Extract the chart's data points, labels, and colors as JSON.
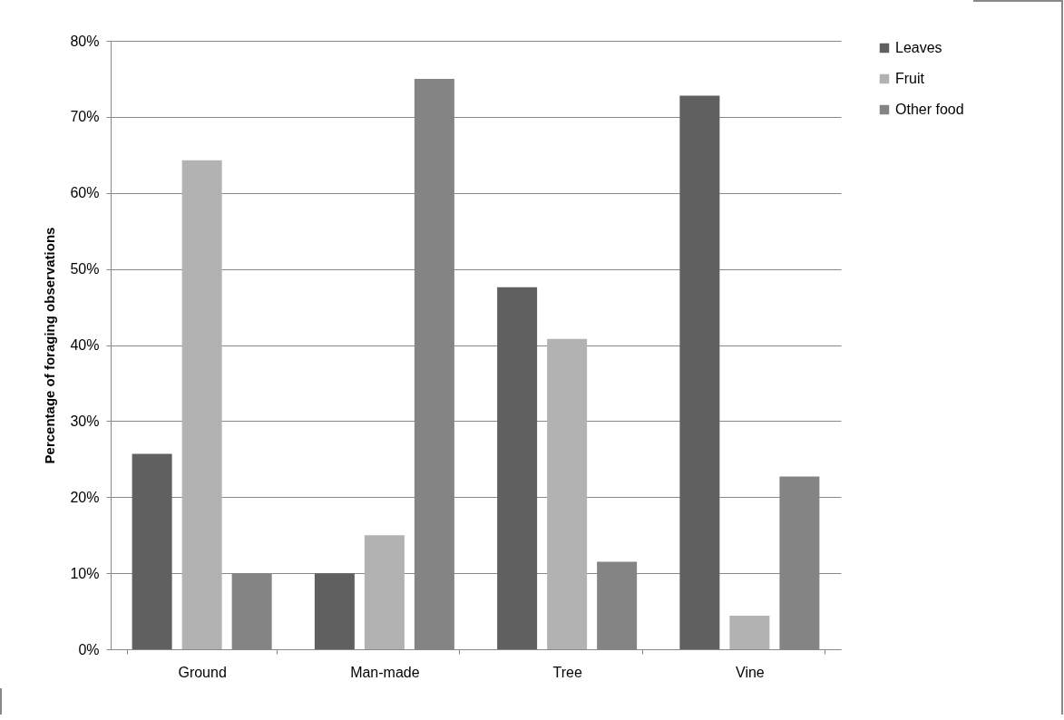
{
  "chart_data": {
    "type": "bar",
    "ylabel": "Percentage of foraging observations",
    "categories": [
      "Ground",
      "Man-made",
      "Tree",
      "Vine"
    ],
    "series": [
      {
        "name": "Leaves",
        "color": "#606060",
        "values": [
          25.7,
          10,
          47.6,
          72.8
        ]
      },
      {
        "name": "Fruit",
        "color": "#b2b2b2",
        "values": [
          64.3,
          15,
          40.8,
          4.4
        ]
      },
      {
        "name": "Other food",
        "color": "#848484",
        "values": [
          10,
          75,
          11.5,
          22.7
        ]
      }
    ],
    "ylim": [
      0,
      80
    ],
    "yticks": [
      {
        "value": 0,
        "label": "0%"
      },
      {
        "value": 10,
        "label": "10%"
      },
      {
        "value": 20,
        "label": "20%"
      },
      {
        "value": 30,
        "label": "30%"
      },
      {
        "value": 40,
        "label": "40%"
      },
      {
        "value": 50,
        "label": "50%"
      },
      {
        "value": 60,
        "label": "60%"
      },
      {
        "value": 70,
        "label": "70%"
      },
      {
        "value": 80,
        "label": "80%"
      }
    ],
    "grid": "y",
    "legend": "right"
  }
}
